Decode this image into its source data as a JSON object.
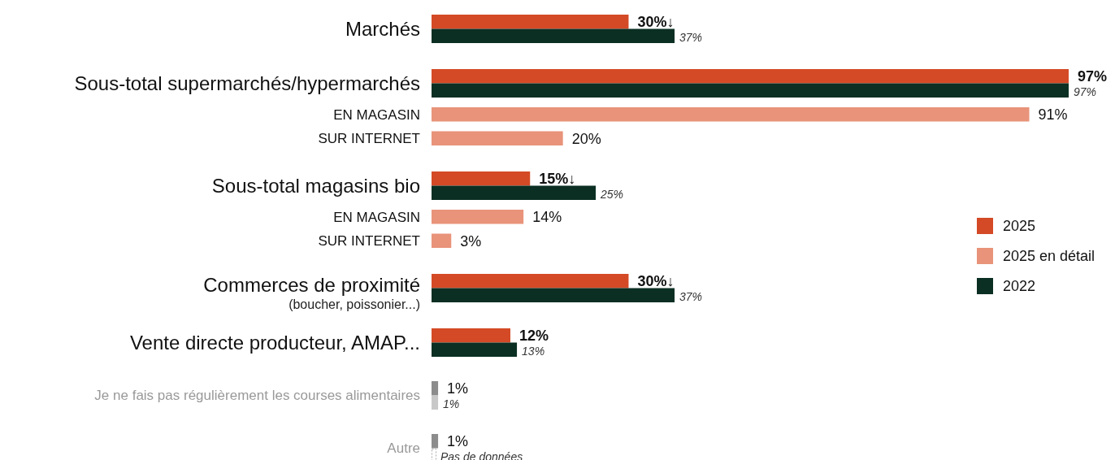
{
  "chart_data": {
    "type": "bar",
    "orientation": "horizontal",
    "legend": "right",
    "categories": [
      "Marchés",
      "Sous-total supermarchés/hypermarchés",
      "EN MAGASIN",
      "SUR INTERNET",
      "Sous-total magasins bio",
      "EN MAGASIN",
      "SUR INTERNET",
      "Commerces de proximité\n(boucher, poissonier...)",
      "Vente directe producteur, AMAP...",
      "Je ne fais pas régulièrement les courses alimentaires",
      "Autre"
    ],
    "series": [
      {
        "name": "2025",
        "color": "#d44a26",
        "colors": [
          "#d44a26",
          "#d44a26",
          null,
          null,
          "#d44a26",
          null,
          null,
          "#d44a26",
          "#d44a26",
          "#8c8c8c",
          "#8c8c8c"
        ],
        "values": [
          30,
          97,
          null,
          null,
          15,
          null,
          null,
          30,
          12,
          1,
          1
        ],
        "value_labels": [
          "30%↓",
          "97%",
          null,
          null,
          "15%↓",
          null,
          null,
          "30%↓",
          "12%",
          "1%",
          "1%"
        ]
      },
      {
        "name": "2025 en détail",
        "color": "#e8937a",
        "values": [
          null,
          null,
          91,
          20,
          null,
          14,
          3,
          null,
          null,
          null,
          null
        ],
        "value_labels": [
          null,
          null,
          "91%",
          "20%",
          null,
          "14%",
          "3%",
          null,
          null,
          null,
          null
        ]
      },
      {
        "name": "2022",
        "color": "#0b2f23",
        "colors": [
          "#0b2f23",
          "#0b2f23",
          null,
          null,
          "#0b2f23",
          null,
          null,
          "#0b2f23",
          "#0b2f23",
          "#c8c8c8",
          null
        ],
        "values": [
          37,
          97,
          null,
          null,
          25,
          null,
          null,
          37,
          13,
          1,
          null
        ],
        "value_labels": [
          "37%",
          "97%",
          null,
          null,
          "25%",
          null,
          null,
          "37%",
          "13%",
          "1%",
          "Pas de données"
        ]
      }
    ]
  }
}
